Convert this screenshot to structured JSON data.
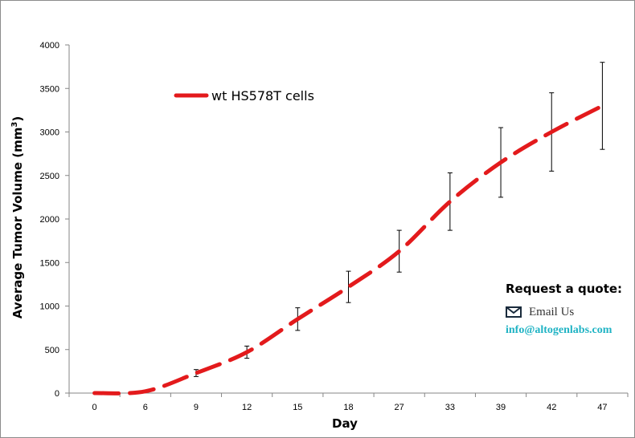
{
  "chart_data": {
    "type": "line",
    "xlabel": "Day",
    "ylabel_text": "Average Tumor Volume (mm",
    "ylabel_sup": "3",
    "ylabel_close": ")",
    "categories": [
      "0",
      "6",
      "9",
      "12",
      "15",
      "18",
      "27",
      "33",
      "39",
      "42",
      "47"
    ],
    "ylim": [
      0,
      4000
    ],
    "yticks": [
      0,
      500,
      1000,
      1500,
      2000,
      2500,
      3000,
      3500,
      4000
    ],
    "grid": false,
    "legend_position": "top-left",
    "series": [
      {
        "name": "wt HS578T cells",
        "color": "#e31a1c",
        "line_style": "dashed",
        "values": [
          0,
          20,
          230,
          470,
          850,
          1220,
          1630,
          2200,
          2650,
          3000,
          3300
        ],
        "error": [
          0,
          0,
          40,
          70,
          130,
          180,
          240,
          330,
          400,
          450,
          500
        ]
      }
    ]
  },
  "quote": {
    "title": "Request a quote:",
    "email_label": "Email Us",
    "email": "info@altogenlabs.com",
    "icon": "mail-icon",
    "link_color": "#1fb3c4"
  }
}
